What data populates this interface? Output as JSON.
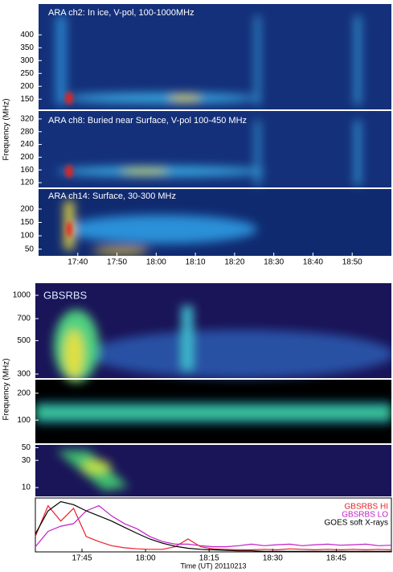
{
  "chart_data": [
    {
      "type": "heatmap",
      "title": "ARA ch2: In ice, V-pol, 100-1000MHz",
      "ylabel": "Frequency (MHz)",
      "ylim": [
        110,
        520
      ],
      "yticks": [
        150,
        200,
        250,
        300,
        350,
        400
      ]
    },
    {
      "type": "heatmap",
      "title": "ARA ch8: Buried near Surface, V-pol 100-450 MHz",
      "ylim": [
        105,
        345
      ],
      "yticks": [
        120,
        160,
        200,
        240,
        280,
        320
      ]
    },
    {
      "type": "heatmap",
      "title": "ARA ch14: Surface, 30-300 MHz",
      "ylim": [
        25,
        275
      ],
      "yticks": [
        50,
        100,
        150,
        200
      ],
      "xlim": [
        "17:30",
        "19:00"
      ],
      "xticks": [
        "17:40",
        "17:50",
        "18:00",
        "18:10",
        "18:20",
        "18:30",
        "18:40",
        "18:50"
      ]
    },
    {
      "type": "heatmap",
      "title": "GBSRBS",
      "ylabel": "Frequency (MHz)",
      "log_y": true,
      "ylim": [
        282,
        1203
      ],
      "yticks": [
        300,
        500,
        700,
        1000
      ]
    },
    {
      "type": "heatmap",
      "log_y": true,
      "ylim": [
        55,
        283
      ],
      "yticks": [
        100,
        200
      ]
    },
    {
      "type": "heatmap",
      "log_y": true,
      "ylim": [
        7,
        56
      ],
      "yticks": [
        10,
        30,
        50
      ]
    },
    {
      "type": "line",
      "xlabel": "Time (UT) 20110213",
      "xlim": [
        "17:34",
        "18:58"
      ],
      "xticks": [
        "17:45",
        "18:00",
        "18:15",
        "18:30",
        "18:45"
      ],
      "ylim": [
        0,
        1.05
      ],
      "x": [
        "17:34",
        "17:37",
        "17:40",
        "17:43",
        "17:46",
        "17:49",
        "17:52",
        "17:55",
        "17:58",
        "18:01",
        "18:04",
        "18:07",
        "18:10",
        "18:13",
        "18:16",
        "18:19",
        "18:22",
        "18:25",
        "18:28",
        "18:31",
        "18:34",
        "18:37",
        "18:40",
        "18:43",
        "18:46",
        "18:49",
        "18:52",
        "18:55",
        "18:58"
      ],
      "series": [
        {
          "name": "GBSRBS HI",
          "color": "#e8202a",
          "values": [
            0.3,
            0.9,
            0.6,
            0.85,
            0.3,
            0.2,
            0.12,
            0.08,
            0.06,
            0.05,
            0.05,
            0.1,
            0.25,
            0.1,
            0.06,
            0.05,
            0.04,
            0.04,
            0.05,
            0.04,
            0.06,
            0.05,
            0.04,
            0.05,
            0.04,
            0.05,
            0.04,
            0.05,
            0.04
          ]
        },
        {
          "name": "GBSRBS LO",
          "color": "#c020c8",
          "values": [
            0.1,
            0.4,
            0.5,
            0.55,
            0.8,
            0.9,
            0.7,
            0.55,
            0.45,
            0.3,
            0.2,
            0.15,
            0.15,
            0.12,
            0.1,
            0.1,
            0.12,
            0.15,
            0.12,
            0.14,
            0.15,
            0.12,
            0.14,
            0.15,
            0.13,
            0.14,
            0.15,
            0.12,
            0.13
          ]
        },
        {
          "name": "GOES soft X-rays",
          "color": "#000000",
          "values": [
            0.35,
            0.8,
            0.98,
            0.92,
            0.8,
            0.7,
            0.6,
            0.48,
            0.36,
            0.25,
            0.17,
            0.11,
            0.07,
            0.05,
            0.04,
            0.03,
            0.02,
            0.02,
            0.01,
            0.01,
            0.01,
            0.01,
            0.01,
            0.01,
            0.01,
            0.01,
            0.01,
            0.01,
            0.01
          ]
        }
      ]
    }
  ]
}
